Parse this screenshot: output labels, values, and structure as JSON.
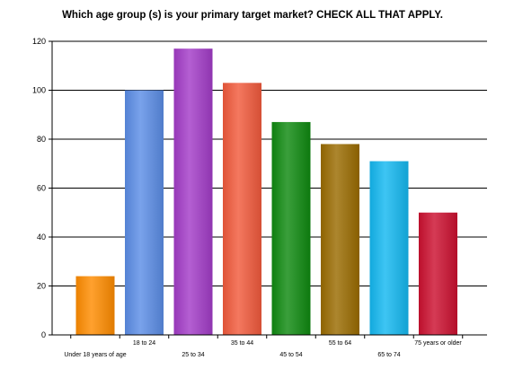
{
  "chart_data": {
    "type": "bar",
    "title": "Which age group (s) is your primary target market? CHECK ALL THAT APPLY.",
    "categories": [
      "Under 18 years of age",
      "18 to 24",
      "25 to 34",
      "35 to 44",
      "45 to 54",
      "55 to 64",
      "65 to 74",
      "75 years or older"
    ],
    "values": [
      24,
      100,
      117,
      103,
      87,
      78,
      71,
      50
    ],
    "colors": [
      "#ff8c00",
      "#5b8de6",
      "#a33cc8",
      "#f25a3c",
      "#0f8a10",
      "#9a6c00",
      "#14b8f0",
      "#cc1030"
    ],
    "ylim": [
      0,
      120
    ],
    "yticks": [
      0,
      20,
      40,
      60,
      80,
      100,
      120
    ],
    "grid": true,
    "legend": "none",
    "xlabel": "",
    "ylabel": ""
  }
}
